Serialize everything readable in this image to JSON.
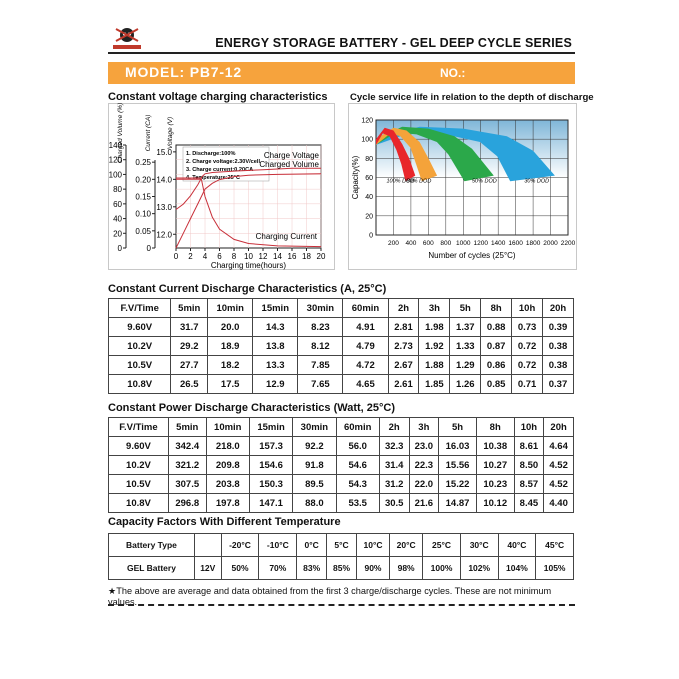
{
  "header": {
    "series_title": "ENERGY STORAGE BATTERY - GEL DEEP CYCLE SERIES",
    "model_label": "MODEL: PB7-12",
    "no_label": "NO.:"
  },
  "charging_chart": {
    "title": "Constant voltage charging characteristics",
    "unit_charged_volume": "Charged Volume (%)",
    "unit_current": "Current (CA)",
    "unit_voltage": "Voltage (V)",
    "legend": [
      "1. Discharge:100%",
      "2. Charge voltage:2.30V/cell",
      "3. Charge current:0.20CA",
      "4. Temperature:25°C"
    ],
    "curve_labels": {
      "volume": "Charged Volume",
      "voltage": "Charge Voltage",
      "current": "Charging Current"
    },
    "xlabel": "Charging time(hours)"
  },
  "cycle_chart": {
    "title": "Cycle service life in relation to the depth of discharge",
    "ylabel": "Capacity(%)",
    "xlabel": "Number of cycles (25°C)",
    "dod_labels": [
      "100% DOD",
      "80% DOD",
      "50% DOD",
      "30% DOD"
    ]
  },
  "chart_data": [
    {
      "type": "line",
      "title": "Constant voltage charging characteristics",
      "xlabel": "Charging time(hours)",
      "x_ticks": [
        0,
        2,
        4,
        6,
        8,
        10,
        12,
        14,
        16,
        18,
        20
      ],
      "axes": {
        "charged_volume_pct": {
          "ticks": [
            0,
            20,
            40,
            60,
            80,
            100,
            120,
            140
          ],
          "range": [
            0,
            140
          ]
        },
        "current_ca": {
          "ticks": [
            "0",
            "0.05",
            "0.10",
            "0.15",
            "0.20",
            "0.25"
          ],
          "range": [
            0,
            0.3
          ]
        },
        "voltage_v": {
          "ticks": [
            "12.0",
            "13.0",
            "14.0",
            "15.0"
          ],
          "range": [
            11.5,
            15.25
          ]
        }
      },
      "series": [
        {
          "name": "Charged Volume",
          "axis": "charged_volume_pct",
          "x": [
            0,
            1,
            2,
            3,
            4,
            5,
            6,
            8,
            10,
            14,
            20
          ],
          "y": [
            0,
            20,
            40,
            60,
            80,
            88,
            93,
            97,
            99,
            100,
            101
          ]
        },
        {
          "name": "Charge Voltage",
          "axis": "voltage_v",
          "x": [
            0,
            1,
            2,
            3,
            3.6,
            4,
            5,
            8,
            12,
            16,
            20
          ],
          "y": [
            12.9,
            13.1,
            13.4,
            13.8,
            14.1,
            14.2,
            14.25,
            14.3,
            14.35,
            14.4,
            14.4
          ]
        },
        {
          "name": "Charging Current",
          "axis": "current_ca",
          "x": [
            0,
            2,
            3.5,
            4,
            5,
            6,
            8,
            10,
            14,
            20
          ],
          "y": [
            0.2,
            0.2,
            0.2,
            0.15,
            0.09,
            0.055,
            0.025,
            0.013,
            0.006,
            0.004
          ]
        }
      ]
    },
    {
      "type": "line",
      "title": "Cycle service life in relation to the depth of discharge",
      "xlabel": "Number of cycles (25°C)",
      "ylabel": "Capacity(%)",
      "xlim": [
        0,
        2200
      ],
      "ylim": [
        0,
        120
      ],
      "x_ticks": [
        200,
        400,
        600,
        800,
        1000,
        1200,
        1400,
        1600,
        1800,
        2000,
        2200
      ],
      "y_ticks": [
        0,
        20,
        40,
        60,
        80,
        100,
        120
      ],
      "series": [
        {
          "name": "100% DOD",
          "color": "#e8262b",
          "x": [
            0,
            100,
            200,
            300,
            380,
            450
          ],
          "y": [
            100,
            112,
            109,
            95,
            80,
            62
          ]
        },
        {
          "name": "80% DOD",
          "color": "#f4a33a",
          "x": [
            0,
            200,
            350,
            500,
            600,
            700
          ],
          "y": [
            100,
            112,
            109,
            97,
            80,
            62
          ]
        },
        {
          "name": "50% DOD",
          "color": "#2ba84a",
          "x": [
            0,
            300,
            600,
            900,
            1100,
            1350
          ],
          "y": [
            100,
            113,
            111,
            103,
            90,
            62
          ]
        },
        {
          "name": "30% DOD",
          "color": "#29a3dc",
          "x": [
            0,
            500,
            1000,
            1500,
            1800,
            2050
          ],
          "y": [
            100,
            113,
            111,
            103,
            88,
            62
          ]
        }
      ]
    },
    {
      "type": "table",
      "title": "Constant Current Discharge Characteristics (A, 25°C)",
      "header": [
        "F.V/Time",
        "5min",
        "10min",
        "15min",
        "30min",
        "60min",
        "2h",
        "3h",
        "5h",
        "8h",
        "10h",
        "20h"
      ],
      "rows": [
        [
          "9.60V",
          "31.7",
          "20.0",
          "14.3",
          "8.23",
          "4.91",
          "2.81",
          "1.98",
          "1.37",
          "0.88",
          "0.73",
          "0.39"
        ],
        [
          "10.2V",
          "29.2",
          "18.9",
          "13.8",
          "8.12",
          "4.79",
          "2.73",
          "1.92",
          "1.33",
          "0.87",
          "0.72",
          "0.38"
        ],
        [
          "10.5V",
          "27.7",
          "18.2",
          "13.3",
          "7.85",
          "4.72",
          "2.67",
          "1.88",
          "1.29",
          "0.86",
          "0.72",
          "0.38"
        ],
        [
          "10.8V",
          "26.5",
          "17.5",
          "12.9",
          "7.65",
          "4.65",
          "2.61",
          "1.85",
          "1.26",
          "0.85",
          "0.71",
          "0.37"
        ]
      ]
    },
    {
      "type": "table",
      "title": "Constant Power Discharge Characteristics (Watt, 25°C)",
      "header": [
        "F.V/Time",
        "5min",
        "10min",
        "15min",
        "30min",
        "60min",
        "2h",
        "3h",
        "5h",
        "8h",
        "10h",
        "20h"
      ],
      "rows": [
        [
          "9.60V",
          "342.4",
          "218.0",
          "157.3",
          "92.2",
          "56.0",
          "32.3",
          "23.0",
          "16.03",
          "10.38",
          "8.61",
          "4.64"
        ],
        [
          "10.2V",
          "321.2",
          "209.8",
          "154.6",
          "91.8",
          "54.6",
          "31.4",
          "22.3",
          "15.56",
          "10.27",
          "8.50",
          "4.52"
        ],
        [
          "10.5V",
          "307.5",
          "203.8",
          "150.3",
          "89.5",
          "54.3",
          "31.2",
          "22.0",
          "15.22",
          "10.23",
          "8.57",
          "4.52"
        ],
        [
          "10.8V",
          "296.8",
          "197.8",
          "147.1",
          "88.0",
          "53.5",
          "30.5",
          "21.6",
          "14.87",
          "10.12",
          "8.45",
          "4.40"
        ]
      ]
    },
    {
      "type": "table",
      "title": "Capacity Factors With Different Temperature",
      "header": [
        "Battery Type",
        "",
        "-20°C",
        "-10°C",
        "0°C",
        "5°C",
        "10°C",
        "20°C",
        "25°C",
        "30°C",
        "40°C",
        "45°C"
      ],
      "rows": [
        [
          "GEL Battery",
          "12V",
          "50%",
          "70%",
          "83%",
          "85%",
          "90%",
          "98%",
          "100%",
          "102%",
          "104%",
          "105%"
        ]
      ]
    }
  ],
  "footnote": "★The above are average and data obtained from the first 3 charge/discharge cycles. These are not minimum values."
}
